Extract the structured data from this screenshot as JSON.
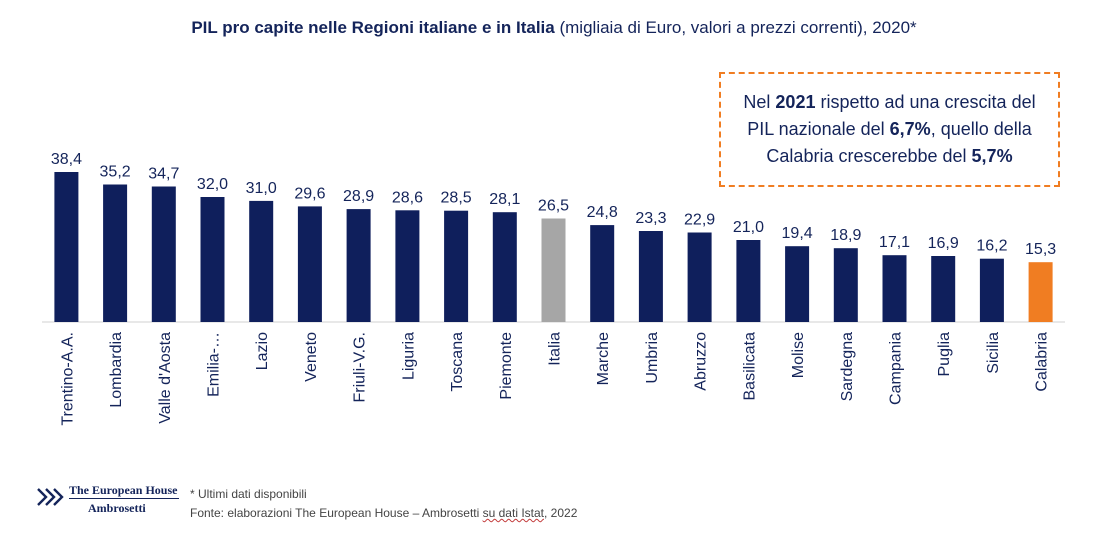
{
  "chart_data": {
    "type": "bar",
    "title_main": "PIL pro capite nelle Regioni italiane e in Italia",
    "title_sub": "(migliaia di Euro, valori a prezzi correnti), 2020*",
    "categories": [
      "Trentino-A.A.",
      "Lombardia",
      "Valle d'Aosta",
      "Emilia-…",
      "Lazio",
      "Veneto",
      "Friuli-V.G.",
      "Liguria",
      "Toscana",
      "Piemonte",
      "Italia",
      "Marche",
      "Umbria",
      "Abruzzo",
      "Basilicata",
      "Molise",
      "Sardegna",
      "Campania",
      "Puglia",
      "Sicilia",
      "Calabria"
    ],
    "values": [
      38.4,
      35.2,
      34.7,
      32.0,
      31.0,
      29.6,
      28.9,
      28.6,
      28.5,
      28.1,
      26.5,
      24.8,
      23.3,
      22.9,
      21.0,
      19.4,
      18.9,
      17.1,
      16.9,
      16.2,
      15.3
    ],
    "value_labels": [
      "38,4",
      "35,2",
      "34,7",
      "32,0",
      "31,0",
      "29,6",
      "28,9",
      "28,6",
      "28,5",
      "28,1",
      "26,5",
      "24,8",
      "23,3",
      "22,9",
      "21,0",
      "19,4",
      "18,9",
      "17,1",
      "16,9",
      "16,2",
      "15,3"
    ],
    "ylim": [
      0,
      40
    ],
    "grid": false,
    "colors": {
      "default": "#0f1f5c",
      "Italia": "#a6a6a6",
      "Calabria": "#f07d22"
    }
  },
  "callout": {
    "t1": "Nel ",
    "b1": "2021",
    "t2": " rispetto ad una crescita del PIL nazionale del ",
    "b2": "6,7%",
    "t3": ", quello della Calabria crescerebbe del ",
    "b3": "5,7%"
  },
  "footer": {
    "logo_line1": "The European House",
    "logo_line2": "Ambrosetti",
    "note": "* Ultimi dati disponibili",
    "source_prefix": "Fonte: elaborazioni The European House – Ambrosetti ",
    "source_underlined": "su dati Istat",
    "source_suffix": ", 2022"
  }
}
